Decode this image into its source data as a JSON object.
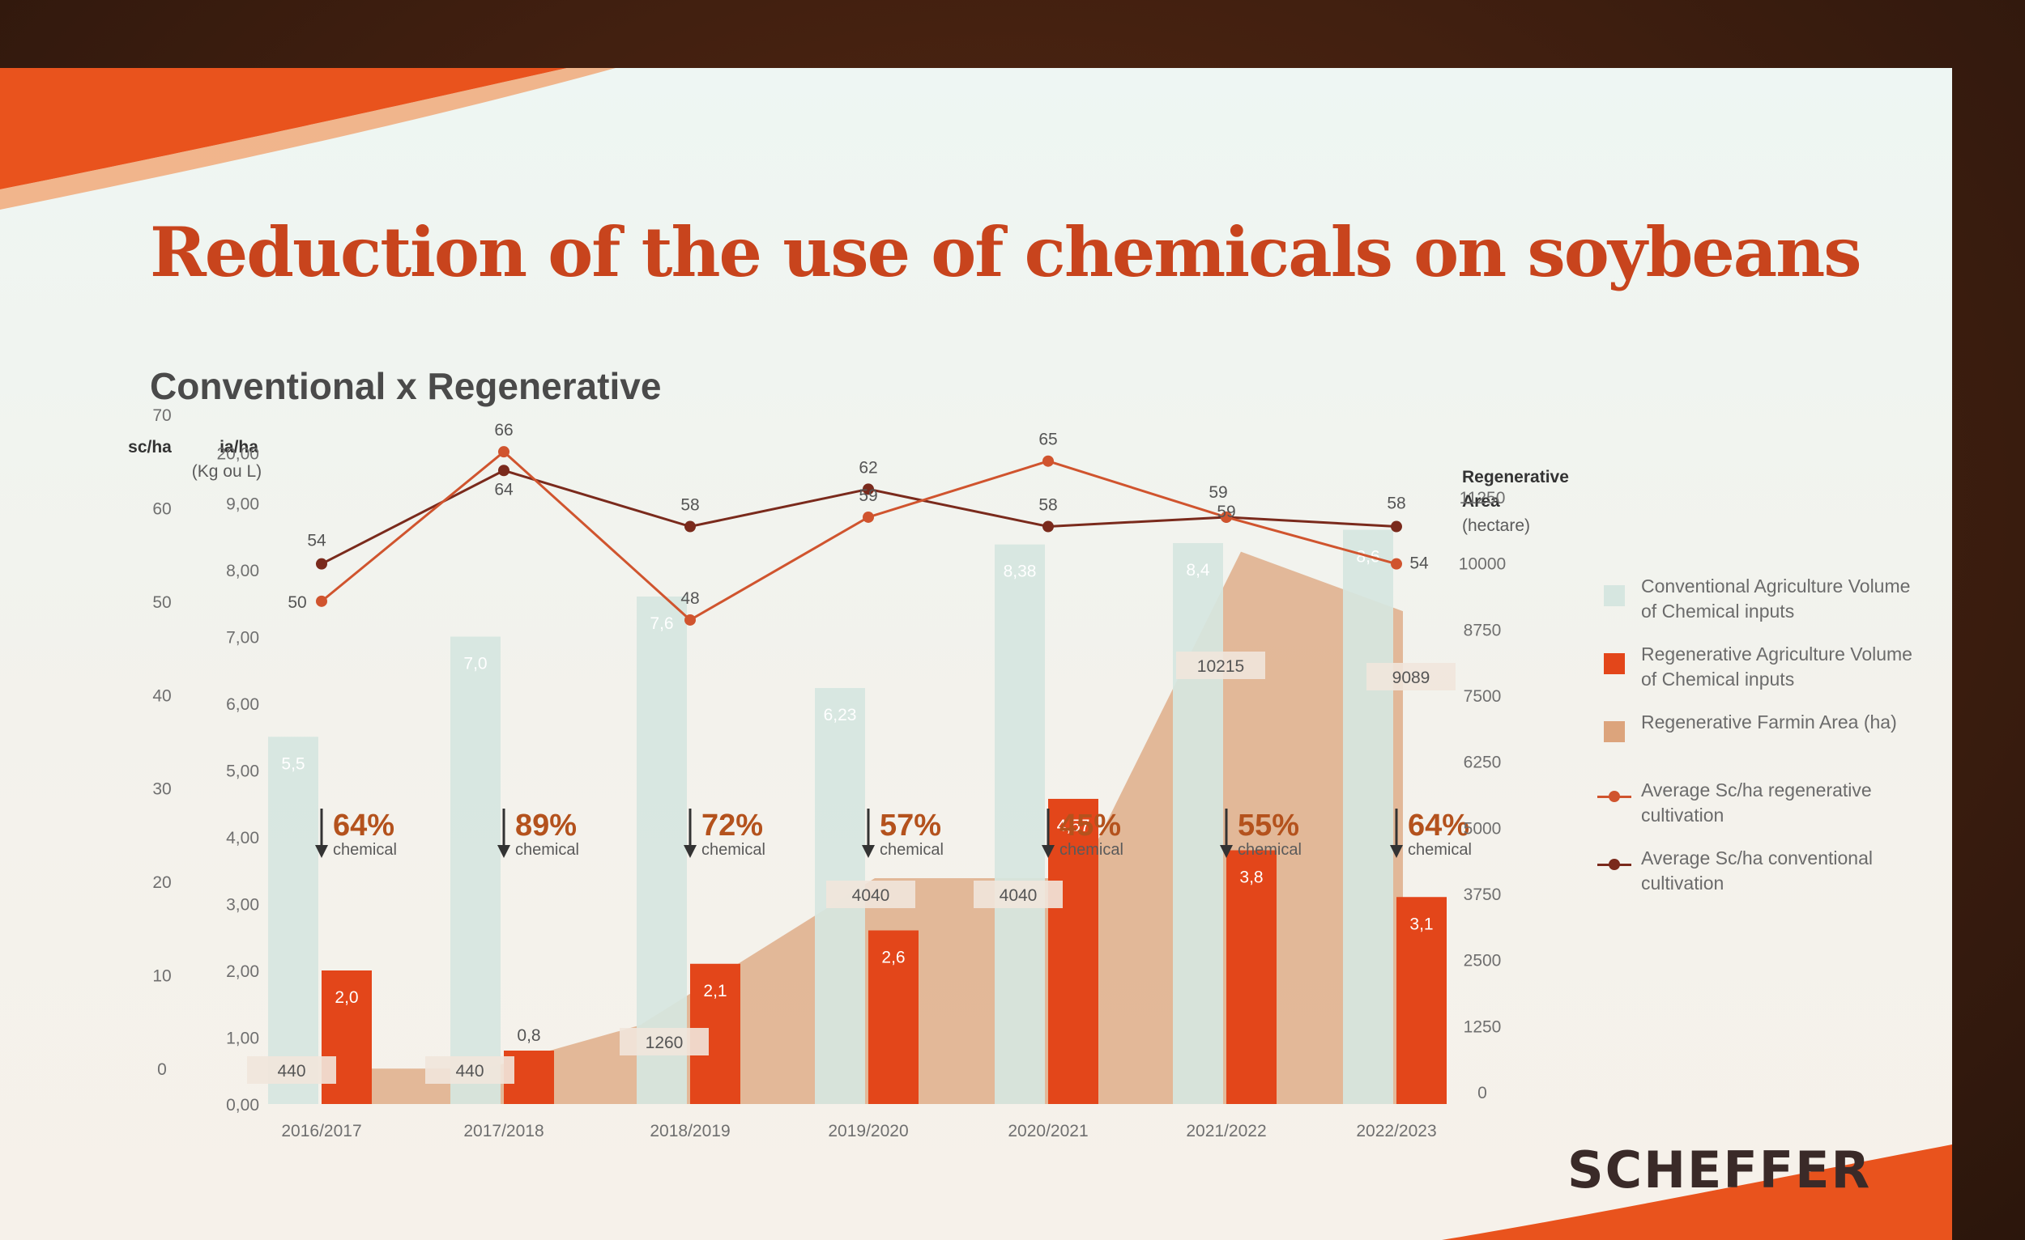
{
  "slide": {
    "title": "Reduction of the use of chemicals on soybeans",
    "subtitle": "Conventional x Regenerative",
    "logo": "SCHEFFER"
  },
  "colors": {
    "conventional_bar": "#d6e6e0",
    "regenerative_bar": "#e3461a",
    "area": "#dca47c",
    "regen_line": "#d0542e",
    "conv_line": "#7a2a1c",
    "accent": "#c8441d"
  },
  "legend": {
    "items": [
      {
        "label": "Conventional Agriculture Volume of Chemical inputs",
        "kind": "bar-conv"
      },
      {
        "label": "Regenerative Agriculture Volume of Chemical inputs",
        "kind": "bar-regen"
      },
      {
        "label": "Regenerative Farmin Area (ha)",
        "kind": "area"
      },
      {
        "label": "Average Sc/ha regenerative cultivation",
        "kind": "line-regen"
      },
      {
        "label": "Average Sc/ha conventional cultivation",
        "kind": "line-conv"
      }
    ]
  },
  "chart_data": {
    "type": "bar",
    "categories": [
      "2016/2017",
      "2017/2018",
      "2018/2019",
      "2019/2020",
      "2020/2021",
      "2021/2022",
      "2022/2023"
    ],
    "axes": {
      "left_sc": {
        "unit_line1": "sc/ha",
        "ticks": [
          "70",
          "60",
          "50",
          "40",
          "30",
          "20",
          "10",
          "0"
        ],
        "range": [
          0,
          70
        ]
      },
      "left_ia": {
        "unit_line1": "ia/ha",
        "unit_line2": "(Kg ou L)",
        "ticks": [
          "20,00",
          "9,00",
          "8,00",
          "7,00",
          "6,00",
          "5,00",
          "4,00",
          "3,00",
          "2,00",
          "1,00",
          "0,00"
        ]
      },
      "right_area": {
        "label_line1": "Regenerative",
        "label_line2": "Area",
        "label_line3": "(hectare)",
        "ticks": [
          "11250",
          "10000",
          "8750",
          "7500",
          "6250",
          "5000",
          "3750",
          "2500",
          "1250",
          "0"
        ],
        "range": [
          0,
          11250
        ]
      }
    },
    "series": [
      {
        "name": "Conventional Agriculture Volume of Chemical inputs",
        "kind": "bar",
        "values": [
          5.5,
          7.0,
          7.6,
          6.23,
          8.38,
          8.4,
          8.6
        ],
        "labels": [
          "5,5",
          "7,0",
          "7,6",
          "6,23",
          "8,38",
          "8,4",
          "8,6"
        ]
      },
      {
        "name": "Regenerative Agriculture Volume of Chemical inputs",
        "kind": "bar",
        "values": [
          2.0,
          0.8,
          2.1,
          2.6,
          4.57,
          3.8,
          3.1
        ],
        "labels": [
          "2,0",
          "0,8",
          "2,1",
          "2,6",
          "4,57",
          "3,8",
          "3,1"
        ]
      },
      {
        "name": "Regenerative Farmin Area (ha)",
        "kind": "area",
        "values": [
          440,
          440,
          1260,
          4040,
          4040,
          10215,
          9089
        ],
        "labels": [
          "440",
          "440",
          "1260",
          "4040",
          "4040",
          "10215",
          "9089"
        ]
      },
      {
        "name": "Average Sc/ha regenerative cultivation",
        "kind": "line",
        "values": [
          50,
          66,
          48,
          59,
          65,
          59,
          54
        ]
      },
      {
        "name": "Average Sc/ha conventional cultivation",
        "kind": "line",
        "values": [
          54,
          64,
          58,
          62,
          58,
          59,
          58
        ]
      }
    ],
    "reductions": [
      {
        "pct": "64%",
        "label": "chemical"
      },
      {
        "pct": "89%",
        "label": "chemical"
      },
      {
        "pct": "72%",
        "label": "chemical"
      },
      {
        "pct": "57%",
        "label": "chemical"
      },
      {
        "pct": "45%",
        "label": "chemical"
      },
      {
        "pct": "55%",
        "label": "chemical"
      },
      {
        "pct": "64%",
        "label": "chemical"
      }
    ],
    "grid": false,
    "legend_position": "right"
  }
}
